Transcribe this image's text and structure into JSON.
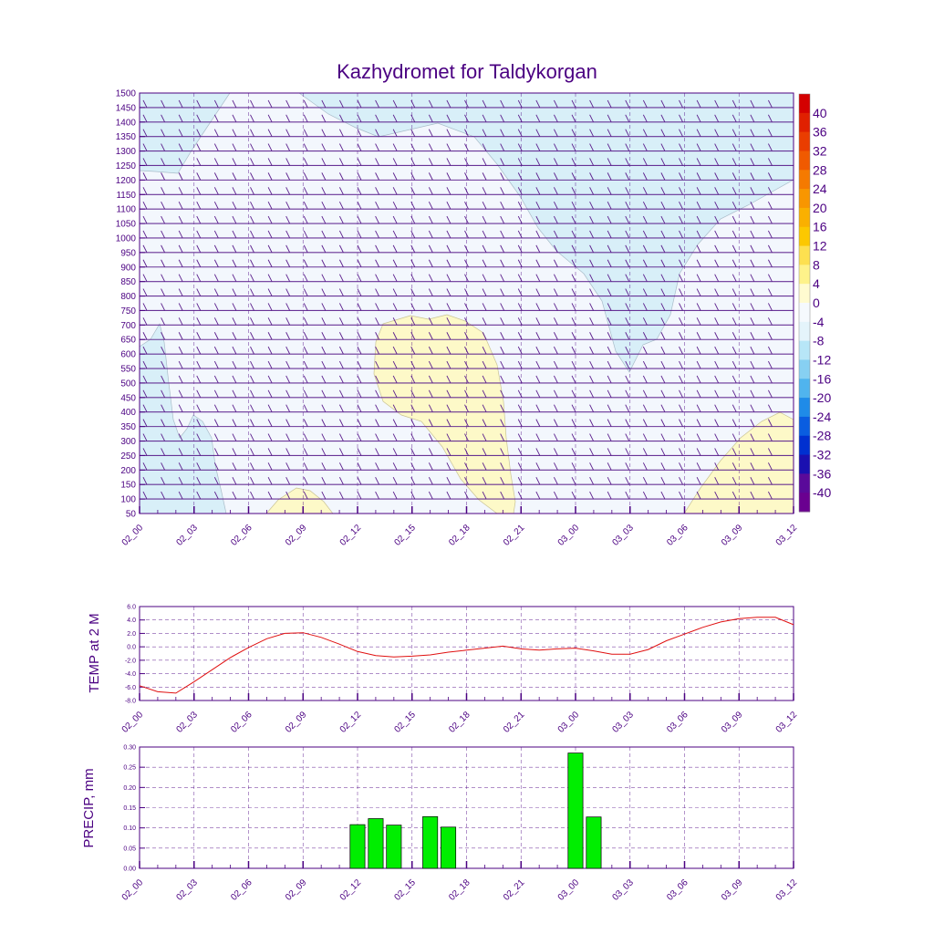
{
  "colors": {
    "frame": "#4b0082",
    "barb": "#5a1e8c",
    "temp_line": "#e01010",
    "precip_bar": "#00ee00",
    "bg_light": "#f3f7fd",
    "cold_fill": "#d8eff8",
    "warm_fill": "#fdf9c8"
  },
  "chart_data": [
    {
      "type": "heatmap",
      "name": "cross-section",
      "title": "Kazhydromet for Taldykorgan",
      "x_ticks": [
        "02_00",
        "02_03",
        "02_06",
        "02_09",
        "02_12",
        "02_15",
        "02_18",
        "02_21",
        "03_00",
        "03_03",
        "03_06",
        "03_09",
        "03_12"
      ],
      "y_ticks": [
        1500,
        1450,
        1400,
        1350,
        1300,
        1250,
        1200,
        1150,
        1100,
        1050,
        1000,
        950,
        900,
        850,
        800,
        750,
        700,
        650,
        600,
        550,
        500,
        450,
        400,
        350,
        300,
        250,
        200,
        150,
        100,
        50
      ],
      "ylim": [
        50,
        1500
      ],
      "colorbar": {
        "labels": [
          "40",
          "36",
          "32",
          "28",
          "24",
          "20",
          "16",
          "12",
          "8",
          "4",
          "0",
          "-4",
          "-8",
          "-12",
          "-16",
          "-20",
          "-24",
          "-28",
          "-32",
          "-36",
          "-40"
        ],
        "colors": [
          "#d40000",
          "#e02000",
          "#ea3d00",
          "#f05a00",
          "#f57a00",
          "#f89600",
          "#fab000",
          "#fcc800",
          "#fde050",
          "#fef28a",
          "#fffbd0",
          "#f5f9fd",
          "#e4f4fb",
          "#b7e6f7",
          "#87d0f2",
          "#50b4ee",
          "#1f8be8",
          "#0a5de0",
          "#0030d0",
          "#1a10b0",
          "#5a0a9a",
          "#6a0090"
        ]
      }
    },
    {
      "type": "line",
      "name": "temperature",
      "ylabel": "TEMP at 2 M",
      "x_ticks": [
        "02_00",
        "02_03",
        "02_06",
        "02_09",
        "02_12",
        "02_15",
        "02_18",
        "02_21",
        "03_00",
        "03_03",
        "03_06",
        "03_09",
        "03_12"
      ],
      "y_ticks": [
        "6.0",
        "4.0",
        "2.0",
        "0.0",
        "-2.0",
        "-4.0",
        "-6.0",
        "-8.0"
      ],
      "ylim": [
        -8,
        6
      ],
      "x_hours": [
        0,
        1,
        2,
        3,
        4,
        5,
        6,
        7,
        8,
        9,
        10,
        11,
        12,
        13,
        14,
        15,
        16,
        17,
        18,
        19,
        20,
        21,
        22,
        23,
        24,
        25,
        26,
        27,
        28,
        29,
        30,
        31,
        32,
        33,
        34,
        35,
        36
      ],
      "values": [
        -5.8,
        -6.7,
        -6.9,
        -5.2,
        -3.4,
        -1.6,
        -0.1,
        1.2,
        2.0,
        2.1,
        1.4,
        0.4,
        -0.7,
        -1.3,
        -1.5,
        -1.4,
        -1.2,
        -0.8,
        -0.5,
        -0.2,
        0.1,
        -0.3,
        -0.5,
        -0.3,
        -0.2,
        -0.6,
        -1.1,
        -1.1,
        -0.4,
        0.9,
        1.9,
        2.9,
        3.7,
        4.2,
        4.4,
        4.4,
        3.3
      ]
    },
    {
      "type": "bar",
      "name": "precipitation",
      "ylabel": "PRECIP, mm",
      "x_ticks": [
        "02_00",
        "02_03",
        "02_06",
        "02_09",
        "02_12",
        "02_15",
        "02_18",
        "02_21",
        "03_00",
        "03_03",
        "03_06",
        "03_09",
        "03_12"
      ],
      "y_ticks": [
        "0.30",
        "0.25",
        "0.20",
        "0.15",
        "0.10",
        "0.05",
        "0.00"
      ],
      "ylim": [
        0,
        0.3
      ],
      "bars": [
        {
          "hour": 12,
          "value": 0.108
        },
        {
          "hour": 13,
          "value": 0.123
        },
        {
          "hour": 14,
          "value": 0.107
        },
        {
          "hour": 16,
          "value": 0.128
        },
        {
          "hour": 17,
          "value": 0.102
        },
        {
          "hour": 24,
          "value": 0.285
        },
        {
          "hour": 25,
          "value": 0.127
        }
      ]
    }
  ]
}
